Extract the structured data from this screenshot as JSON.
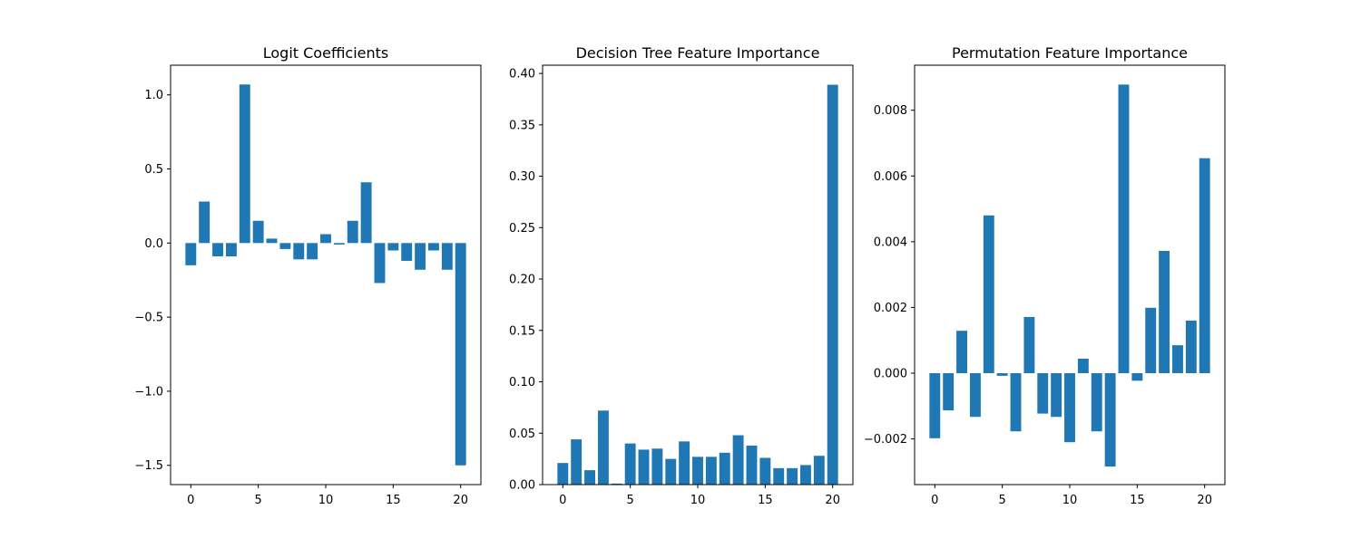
{
  "chart_data": [
    {
      "type": "bar",
      "title": "Logit Coefficients",
      "xlabel": "",
      "ylabel": "",
      "x": [
        0,
        1,
        2,
        3,
        4,
        5,
        6,
        7,
        8,
        9,
        10,
        11,
        12,
        13,
        14,
        15,
        16,
        17,
        18,
        19,
        20
      ],
      "values": [
        -0.15,
        0.28,
        -0.09,
        -0.09,
        1.07,
        0.15,
        0.03,
        -0.04,
        -0.11,
        -0.11,
        0.06,
        -0.01,
        0.15,
        0.41,
        -0.27,
        -0.05,
        -0.12,
        -0.18,
        -0.05,
        -0.18,
        -1.5
      ],
      "xlim": [
        -1.5,
        21.5
      ],
      "ylim": [
        -1.63,
        1.2
      ],
      "xticks": [
        0,
        5,
        10,
        15,
        20
      ],
      "xtick_labels": [
        "0",
        "5",
        "10",
        "15",
        "20"
      ],
      "yticks": [
        1.0,
        0.5,
        0.0,
        -0.5,
        -1.0,
        -1.5
      ],
      "ytick_labels": [
        "1.0",
        "0.5",
        "0.0",
        "−0.5",
        "−1.0",
        "−1.5"
      ],
      "grid": false
    },
    {
      "type": "bar",
      "title": "Decision Tree Feature Importance",
      "xlabel": "",
      "ylabel": "",
      "x": [
        0,
        1,
        2,
        3,
        4,
        5,
        6,
        7,
        8,
        9,
        10,
        11,
        12,
        13,
        14,
        15,
        16,
        17,
        18,
        19,
        20
      ],
      "values": [
        0.021,
        0.044,
        0.014,
        0.072,
        0.001,
        0.04,
        0.034,
        0.035,
        0.025,
        0.042,
        0.027,
        0.027,
        0.031,
        0.048,
        0.038,
        0.026,
        0.016,
        0.016,
        0.019,
        0.028,
        0.389
      ],
      "xlim": [
        -1.5,
        21.5
      ],
      "ylim": [
        0,
        0.408
      ],
      "xticks": [
        0,
        5,
        10,
        15,
        20
      ],
      "xtick_labels": [
        "0",
        "5",
        "10",
        "15",
        "20"
      ],
      "yticks": [
        0.4,
        0.35,
        0.3,
        0.25,
        0.2,
        0.15,
        0.1,
        0.05,
        0.0
      ],
      "ytick_labels": [
        "0.40",
        "0.35",
        "0.30",
        "0.25",
        "0.20",
        "0.15",
        "0.10",
        "0.05",
        "0.00"
      ],
      "grid": false
    },
    {
      "type": "bar",
      "title": "Permutation Feature Importance",
      "xlabel": "",
      "ylabel": "",
      "x": [
        0,
        1,
        2,
        3,
        4,
        5,
        6,
        7,
        8,
        9,
        10,
        11,
        12,
        13,
        14,
        15,
        16,
        17,
        18,
        19,
        20
      ],
      "values": [
        -0.00198,
        -0.00113,
        0.00129,
        -0.00133,
        0.0048,
        -8e-05,
        -0.00177,
        0.00171,
        -0.00123,
        -0.00133,
        -0.0021,
        0.00044,
        -0.00177,
        -0.00284,
        0.00878,
        -0.00023,
        0.00199,
        0.00372,
        0.00085,
        0.0016,
        0.00654
      ],
      "xlim": [
        -1.5,
        21.5
      ],
      "ylim": [
        -0.00339,
        0.00937
      ],
      "xticks": [
        0,
        5,
        10,
        15,
        20
      ],
      "xtick_labels": [
        "0",
        "5",
        "10",
        "15",
        "20"
      ],
      "yticks": [
        0.008,
        0.006,
        0.004,
        0.002,
        0.0,
        -0.002
      ],
      "ytick_labels": [
        "0.008",
        "0.006",
        "0.004",
        "0.002",
        "0.000",
        "−0.002"
      ],
      "grid": false
    }
  ],
  "colors": {
    "bar": "#1f77b4",
    "axis": "#000000",
    "background": "#ffffff"
  }
}
